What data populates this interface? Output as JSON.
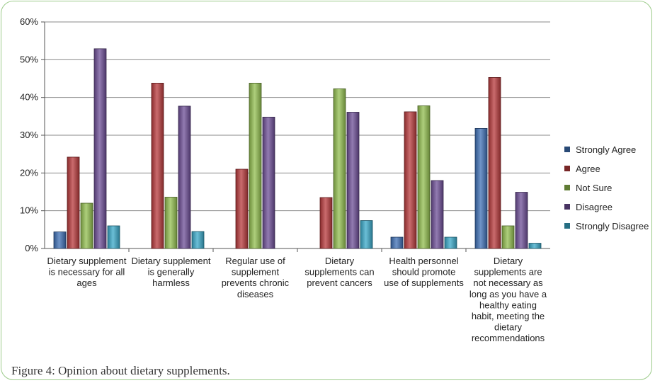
{
  "caption": "Figure 4: Opinion about dietary supplements.",
  "chart_data": {
    "type": "bar",
    "title": "",
    "xlabel": "",
    "ylabel": "",
    "ylim": [
      0,
      60
    ],
    "yticks": [
      "0%",
      "10%",
      "20%",
      "30%",
      "40%",
      "50%",
      "60%"
    ],
    "grid": true,
    "legend_position": "right",
    "categories": [
      [
        "Dietary supplement",
        "is necessary for all",
        "ages"
      ],
      [
        "Dietary supplement",
        "is generally",
        "harmless"
      ],
      [
        "Regular use of",
        "supplement",
        "prevents chronic",
        "diseases"
      ],
      [
        "Dietary",
        "supplements can",
        "prevent cancers"
      ],
      [
        "Health personnel",
        "should promote",
        "use of supplements"
      ],
      [
        "Dietary",
        "supplements are",
        "not necessary as",
        "long as you have a",
        "healthy eating",
        "habit, meeting the",
        "dietary",
        "recommendations"
      ]
    ],
    "series": [
      {
        "name": "Strongly Agree",
        "color": "#3f70b5",
        "values": [
          4.4,
          0,
          0,
          0,
          3.0,
          31.8
        ]
      },
      {
        "name": "Agree",
        "color": "#b83a3c",
        "values": [
          24.2,
          43.8,
          21.0,
          13.5,
          36.2,
          45.3
        ]
      },
      {
        "name": "Not Sure",
        "color": "#93bf50",
        "values": [
          12.0,
          13.6,
          43.8,
          42.3,
          37.8,
          6.0
        ]
      },
      {
        "name": "Disagree",
        "color": "#6e4f97",
        "values": [
          52.9,
          37.7,
          34.8,
          36.1,
          18.0,
          14.9
        ]
      },
      {
        "name": "Strongly Disagree",
        "color": "#3aa9c9",
        "values": [
          6.0,
          4.5,
          0,
          7.4,
          3.0,
          1.4
        ]
      }
    ]
  }
}
